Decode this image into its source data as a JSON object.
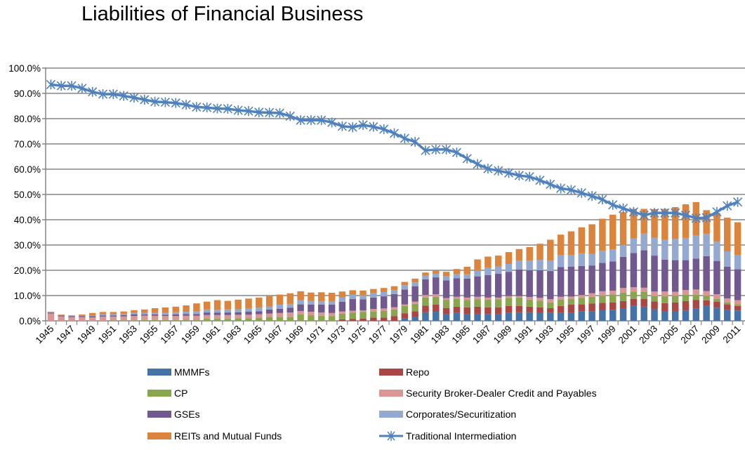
{
  "chart_data": {
    "type": "bar+line",
    "title": "Liabilities of Financial Business",
    "xlabel": "",
    "ylabel": "",
    "ylim": [
      0,
      100
    ],
    "grid": true,
    "legend_placement": "bottom",
    "y_tick_labels": [
      "0.0%",
      "10.0%",
      "20.0%",
      "30.0%",
      "40.0%",
      "50.0%",
      "60.0%",
      "70.0%",
      "80.0%",
      "90.0%",
      "100.0%"
    ],
    "x_tick_labels": [
      "1945",
      "1947",
      "1949",
      "1951",
      "1953",
      "1955",
      "1957",
      "1959",
      "1961",
      "1963",
      "1965",
      "1967",
      "1969",
      "1971",
      "1973",
      "1975",
      "1977",
      "1979",
      "1981",
      "1983",
      "1985",
      "1987",
      "1989",
      "1991",
      "1993",
      "1995",
      "1997",
      "1999",
      "2001",
      "2003",
      "2005",
      "2007",
      "2009",
      "2011"
    ],
    "categories": [
      1945,
      1946,
      1947,
      1948,
      1949,
      1950,
      1951,
      1952,
      1953,
      1954,
      1955,
      1956,
      1957,
      1958,
      1959,
      1960,
      1961,
      1962,
      1963,
      1964,
      1965,
      1966,
      1967,
      1968,
      1969,
      1970,
      1971,
      1972,
      1973,
      1974,
      1975,
      1976,
      1977,
      1978,
      1979,
      1980,
      1981,
      1982,
      1983,
      1984,
      1985,
      1986,
      1987,
      1988,
      1989,
      1990,
      1991,
      1992,
      1993,
      1994,
      1995,
      1996,
      1997,
      1998,
      1999,
      2000,
      2001,
      2002,
      2003,
      2004,
      2005,
      2006,
      2007,
      2008,
      2009,
      2010,
      2011
    ],
    "series": [
      {
        "name": "MMMFs",
        "kind": "stacked-bar",
        "color": "#4572A7",
        "values": [
          0,
          0,
          0,
          0,
          0,
          0,
          0,
          0,
          0,
          0,
          0,
          0,
          0,
          0,
          0,
          0,
          0,
          0,
          0,
          0,
          0,
          0,
          0,
          0,
          0,
          0,
          0,
          0,
          0,
          0,
          0,
          0,
          0,
          0,
          0.9,
          1.5,
          3.4,
          3.6,
          2.6,
          3.1,
          2.6,
          2.8,
          2.7,
          2.6,
          3.1,
          3.4,
          3.4,
          3.2,
          3.1,
          3.1,
          3.3,
          3.7,
          3.7,
          4.3,
          4.4,
          5.0,
          5.9,
          5.6,
          4.6,
          3.9,
          3.9,
          4.1,
          4.9,
          6.1,
          5.2,
          4.4,
          4.1
        ]
      },
      {
        "name": "Repo",
        "kind": "stacked-bar",
        "color": "#AA4643",
        "values": [
          0,
          0,
          0,
          0,
          0,
          0,
          0,
          0,
          0,
          0,
          0,
          0,
          0,
          0,
          0,
          0,
          0,
          0,
          0,
          0,
          0,
          0,
          0,
          0,
          0,
          0,
          0,
          0,
          0.6,
          0.7,
          0.9,
          1.3,
          1.3,
          1.9,
          2.1,
          2.3,
          2.6,
          2.8,
          2.5,
          2.5,
          2.7,
          2.8,
          2.6,
          2.7,
          2.8,
          2.5,
          2.2,
          2.1,
          1.9,
          2.8,
          3.1,
          2.8,
          3.1,
          2.8,
          2.9,
          2.8,
          2.8,
          3.1,
          3.1,
          3.1,
          3.4,
          3.7,
          3.4,
          2.0,
          2.4,
          2.1,
          1.8
        ]
      },
      {
        "name": "CP",
        "kind": "stacked-bar",
        "color": "#89A54E",
        "values": [
          0,
          0,
          0,
          0,
          0,
          0,
          0.2,
          0.2,
          0.2,
          0.3,
          0.3,
          0.3,
          0.3,
          0.4,
          0.4,
          0.8,
          0.8,
          0.8,
          1.0,
          1.0,
          1.2,
          1.5,
          1.5,
          1.5,
          2.6,
          2.2,
          2.0,
          1.9,
          2.2,
          2.6,
          2.6,
          2.4,
          2.6,
          2.6,
          2.9,
          2.9,
          3.2,
          3.1,
          3.2,
          3.1,
          2.9,
          2.9,
          3.1,
          3.2,
          3.2,
          3.3,
          2.8,
          2.6,
          2.3,
          2.5,
          2.2,
          2.6,
          2.7,
          2.8,
          3.2,
          3.4,
          2.8,
          2.8,
          2.1,
          2.7,
          2.6,
          2.5,
          2.0,
          1.8,
          1.1,
          0.8,
          0.6
        ]
      },
      {
        "name": "Security Broker-Dealer Credit and Payables",
        "kind": "stacked-bar",
        "color": "#D99694",
        "values": [
          2.9,
          1.8,
          1.5,
          1.5,
          1.4,
          1.7,
          1.5,
          1.6,
          1.7,
          1.8,
          1.7,
          1.6,
          1.6,
          1.6,
          1.6,
          1.5,
          1.5,
          1.5,
          1.4,
          1.4,
          1.4,
          1.4,
          1.6,
          1.8,
          1.3,
          1.4,
          1.3,
          1.2,
          0.9,
          0.7,
          0.6,
          1.0,
          1.0,
          0.9,
          0.6,
          0.9,
          1.0,
          1.0,
          0.7,
          0.8,
          1.0,
          1.0,
          0.8,
          0.7,
          0.7,
          0.6,
          1.0,
          1.2,
          1.3,
          1.1,
          1.0,
          1.1,
          1.4,
          1.8,
          1.4,
          1.8,
          1.8,
          1.6,
          1.8,
          1.9,
          1.6,
          1.9,
          2.1,
          1.9,
          1.8,
          1.6,
          1.7
        ]
      },
      {
        "name": "GSEs",
        "kind": "stacked-bar",
        "color": "#71588F",
        "values": [
          0.3,
          0.3,
          0.3,
          0.4,
          0.4,
          0.4,
          0.4,
          0.5,
          0.6,
          0.4,
          0.5,
          0.5,
          0.6,
          0.7,
          0.7,
          1.0,
          0.9,
          1.0,
          1.0,
          1.2,
          1.2,
          1.6,
          1.7,
          1.9,
          2.6,
          2.8,
          3.1,
          3.3,
          3.8,
          4.6,
          4.4,
          4.5,
          4.8,
          5.2,
          5.9,
          6.1,
          6.2,
          6.7,
          7.0,
          7.3,
          7.5,
          8.1,
          8.9,
          9.4,
          9.6,
          10.5,
          10.6,
          10.9,
          11.1,
          11.8,
          11.8,
          11.5,
          11.0,
          11.2,
          11.6,
          12.3,
          13.5,
          14.8,
          14.2,
          12.6,
          12.5,
          11.8,
          12.2,
          13.8,
          13.2,
          12.5,
          12.2
        ]
      },
      {
        "name": "Corporates/Securitization",
        "kind": "stacked-bar",
        "color": "#93A9CF",
        "values": [
          0.3,
          0.2,
          0.2,
          0.2,
          0.3,
          0.5,
          0.5,
          0.5,
          0.6,
          0.6,
          0.7,
          0.8,
          0.9,
          0.9,
          1.0,
          1.2,
          1.2,
          1.2,
          1.2,
          1.4,
          1.4,
          1.2,
          1.6,
          1.5,
          1.6,
          1.5,
          1.4,
          1.4,
          1.7,
          1.7,
          1.6,
          1.7,
          1.7,
          1.6,
          1.7,
          1.5,
          1.5,
          1.4,
          1.6,
          1.7,
          1.7,
          2.3,
          2.8,
          2.9,
          3.1,
          3.5,
          3.8,
          4.1,
          4.2,
          4.6,
          4.7,
          5.0,
          4.6,
          4.9,
          4.8,
          4.8,
          5.8,
          6.6,
          7.1,
          7.8,
          8.4,
          8.8,
          9.2,
          8.8,
          7.6,
          6.1,
          5.6
        ]
      },
      {
        "name": "REITs and Mutual Funds",
        "kind": "stacked-bar",
        "color": "#DB843D",
        "values": [
          0.1,
          0.2,
          0.2,
          0.4,
          1.0,
          0.9,
          0.9,
          0.9,
          1.1,
          1.4,
          1.8,
          2.1,
          2.2,
          2.5,
          3.2,
          3.1,
          3.8,
          3.4,
          3.8,
          3.8,
          4.0,
          4.1,
          4.0,
          4.2,
          3.6,
          3.3,
          3.5,
          3.3,
          2.4,
          1.8,
          1.9,
          1.7,
          1.6,
          1.5,
          1.3,
          1.5,
          1.2,
          1.4,
          1.8,
          2.0,
          3.0,
          4.4,
          4.5,
          4.3,
          4.7,
          4.6,
          5.4,
          6.4,
          8.2,
          8.2,
          9.3,
          10.3,
          11.7,
          12.6,
          13.7,
          12.9,
          11.7,
          9.8,
          11.3,
          12.3,
          12.6,
          13.3,
          13.2,
          9.4,
          11.4,
          13.3,
          13.0
        ]
      },
      {
        "name": "Traditional Intermediation",
        "kind": "line",
        "color": "#4F81BD",
        "values": [
          93.5,
          93.0,
          93.0,
          92.0,
          90.6,
          89.7,
          89.7,
          89.0,
          88.3,
          87.5,
          86.7,
          86.5,
          86.2,
          85.5,
          84.6,
          84.4,
          84.0,
          83.9,
          83.3,
          83.0,
          82.5,
          82.4,
          82.2,
          81.0,
          79.4,
          79.4,
          79.4,
          78.5,
          77.0,
          76.6,
          77.5,
          76.8,
          75.8,
          74.2,
          72.2,
          70.8,
          67.4,
          67.8,
          67.8,
          66.6,
          64.2,
          62.0,
          60.2,
          59.4,
          58.5,
          57.5,
          57.0,
          55.6,
          54.0,
          52.4,
          51.8,
          50.6,
          49.4,
          48.0,
          45.9,
          44.5,
          43.1,
          41.8,
          42.7,
          42.7,
          42.7,
          41.8,
          40.6,
          40.8,
          43.1,
          45.5,
          47.0
        ]
      }
    ]
  }
}
